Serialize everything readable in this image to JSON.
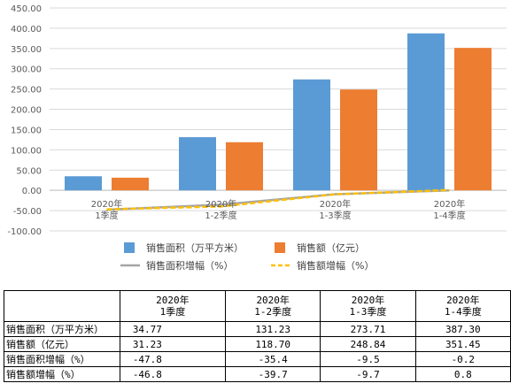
{
  "chart_data": {
    "type": "bar",
    "categories": [
      [
        "2020年",
        "1季度"
      ],
      [
        "2020年",
        "1-2季度"
      ],
      [
        "2020年",
        "1-3季度"
      ],
      [
        "2020年",
        "1-4季度"
      ]
    ],
    "ylim": [
      -100,
      450
    ],
    "yticks": [
      "-100.00",
      "-50.00",
      "0.00",
      "50.00",
      "100.00",
      "150.00",
      "200.00",
      "250.00",
      "300.00",
      "350.00",
      "400.00",
      "450.00"
    ],
    "series": [
      {
        "name": "销售面积（万平方米）",
        "kind": "bar",
        "color": "#5B9BD5",
        "values": [
          34.77,
          131.23,
          273.71,
          387.3
        ],
        "display": [
          "34.77",
          "131.23",
          "273.71",
          "387.30"
        ]
      },
      {
        "name": "销售额（亿元）",
        "kind": "bar",
        "color": "#ED7D31",
        "values": [
          31.23,
          118.7,
          248.84,
          351.45
        ],
        "display": [
          "31.23",
          "118.70",
          "248.84",
          "351.45"
        ]
      },
      {
        "name": "销售面积增幅（%）",
        "kind": "line",
        "color": "#A5A5A5",
        "values": [
          -47.8,
          -35.4,
          -9.5,
          -0.2
        ],
        "display": [
          "-47.8",
          "-35.4",
          "-9.5",
          "-0.2"
        ]
      },
      {
        "name": "销售额增幅（%）",
        "kind": "dashed-line",
        "color": "#FFC000",
        "values": [
          -46.8,
          -39.7,
          -9.7,
          0.8
        ],
        "display": [
          "-46.8",
          "-39.7",
          "-9.7",
          "0.8"
        ]
      }
    ],
    "legend": "bottom",
    "grid": true
  }
}
